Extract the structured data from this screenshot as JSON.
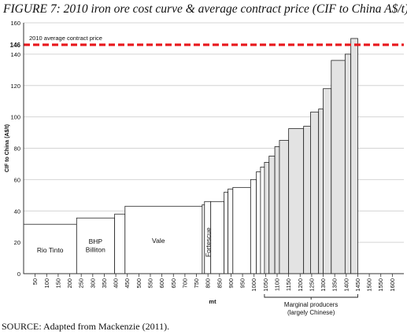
{
  "figure_title": "FIGURE 7: 2010 iron ore cost curve & average contract price (CIF to China A$/t)",
  "source": "SOURCE: Adapted from Mackenzie (2011).",
  "colors": {
    "major_fill": "#ffffff",
    "marginal_fill": "#e3e3e3",
    "bar_stroke": "#222222",
    "reference_line": "#e8161b",
    "grid": "#d4d4d4"
  },
  "chart_data": {
    "type": "bar",
    "subtype": "cost-curve",
    "title": "FIGURE 7: 2010 iron ore cost curve & average contract price (CIF to China A$/t)",
    "xlabel": "mt",
    "ylabel": "CIF to China (A$/t)",
    "xlim": [
      0,
      1650
    ],
    "ylim": [
      0,
      160
    ],
    "x_ticks": [
      50,
      100,
      150,
      200,
      250,
      300,
      350,
      400,
      450,
      500,
      550,
      600,
      650,
      700,
      750,
      800,
      850,
      900,
      950,
      1000,
      1050,
      1100,
      1150,
      1200,
      1250,
      1300,
      1350,
      1400,
      1450,
      1500,
      1550,
      1600
    ],
    "y_ticks": [
      0,
      20,
      40,
      60,
      80,
      100,
      120,
      140,
      160
    ],
    "grid": "horizontal",
    "reference_line": {
      "value": 146,
      "label": "2010 average contract price",
      "value_label": "146",
      "style": "dashed"
    },
    "producer_labels": [
      {
        "text": "Rio Tinto",
        "x": 115,
        "y": 15,
        "lines": [
          "Rio Tinto"
        ]
      },
      {
        "text": "BHP Billiton",
        "x": 312,
        "y": 18,
        "lines": [
          "BHP",
          "Billiton"
        ]
      },
      {
        "text": "Vale",
        "x": 585,
        "y": 21,
        "lines": [
          "Vale"
        ]
      },
      {
        "text": "Fortescue",
        "x": 812,
        "y": 20,
        "lines": [
          "Fortescue"
        ],
        "rotated": true
      }
    ],
    "group_bracket": {
      "x_range": [
        1045,
        1450
      ],
      "label_lines": [
        "Marginal producers",
        "(largely Chinese)"
      ]
    },
    "bars": [
      {
        "x0": 0,
        "x1": 230,
        "value": 31.5,
        "group": "major",
        "name": "Rio Tinto"
      },
      {
        "x0": 230,
        "x1": 395,
        "value": 35.5,
        "group": "major",
        "name": "BHP Billiton"
      },
      {
        "x0": 395,
        "x1": 440,
        "value": 38,
        "group": "major"
      },
      {
        "x0": 440,
        "x1": 775,
        "value": 43,
        "group": "major",
        "name": "Vale"
      },
      {
        "x0": 775,
        "x1": 785,
        "value": 44,
        "group": "major"
      },
      {
        "x0": 785,
        "x1": 812,
        "value": 46,
        "group": "major"
      },
      {
        "x0": 812,
        "x1": 870,
        "value": 46,
        "group": "major",
        "name": "Fortescue"
      },
      {
        "x0": 870,
        "x1": 887,
        "value": 52,
        "group": "major"
      },
      {
        "x0": 887,
        "x1": 908,
        "value": 54,
        "group": "major"
      },
      {
        "x0": 908,
        "x1": 985,
        "value": 55,
        "group": "major"
      },
      {
        "x0": 985,
        "x1": 1010,
        "value": 60,
        "group": "major"
      },
      {
        "x0": 1010,
        "x1": 1028,
        "value": 65,
        "group": "major"
      },
      {
        "x0": 1028,
        "x1": 1045,
        "value": 68,
        "group": "major"
      },
      {
        "x0": 1045,
        "x1": 1065,
        "value": 71,
        "group": "marginal"
      },
      {
        "x0": 1065,
        "x1": 1090,
        "value": 75,
        "group": "marginal"
      },
      {
        "x0": 1090,
        "x1": 1110,
        "value": 81,
        "group": "marginal"
      },
      {
        "x0": 1110,
        "x1": 1150,
        "value": 85,
        "group": "marginal"
      },
      {
        "x0": 1150,
        "x1": 1215,
        "value": 92.5,
        "group": "marginal"
      },
      {
        "x0": 1215,
        "x1": 1245,
        "value": 94,
        "group": "marginal"
      },
      {
        "x0": 1245,
        "x1": 1280,
        "value": 103,
        "group": "marginal"
      },
      {
        "x0": 1280,
        "x1": 1300,
        "value": 105,
        "group": "marginal"
      },
      {
        "x0": 1300,
        "x1": 1335,
        "value": 118,
        "group": "marginal"
      },
      {
        "x0": 1335,
        "x1": 1395,
        "value": 136,
        "group": "marginal"
      },
      {
        "x0": 1395,
        "x1": 1420,
        "value": 140,
        "group": "marginal"
      },
      {
        "x0": 1420,
        "x1": 1450,
        "value": 150,
        "group": "marginal"
      }
    ]
  }
}
